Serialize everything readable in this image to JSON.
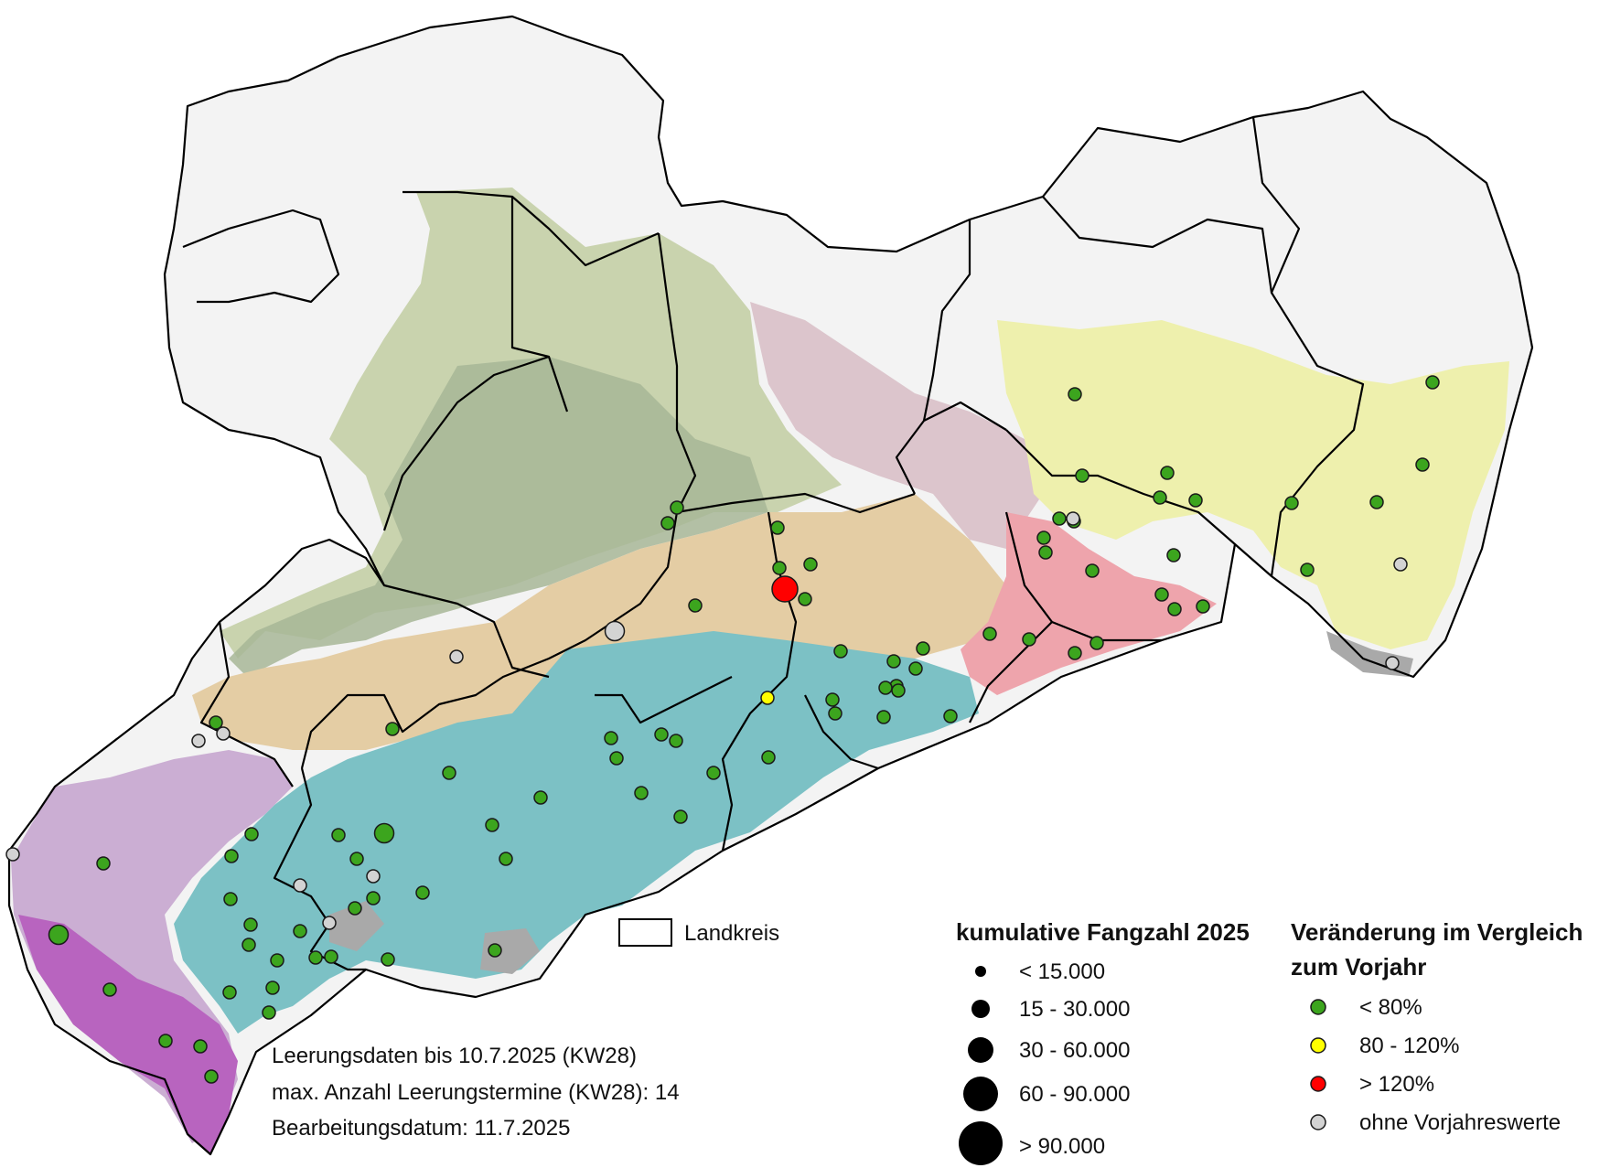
{
  "legend_landkreis": {
    "label": "Landkreis"
  },
  "legend_size": {
    "title": "kumulative Fangzahl 2025",
    "classes": [
      "< 15.000",
      "15 - 30.000",
      "30 - 60.000",
      "60 - 90.000",
      "> 90.000"
    ]
  },
  "legend_color": {
    "title_line1": "Veränderung im Vergleich",
    "title_line2": "zum Vorjahr",
    "classes": [
      {
        "label": "< 80%",
        "color": "#3ca51e"
      },
      {
        "label": "80 - 120%",
        "color": "#ffff00"
      },
      {
        "label": "> 120%",
        "color": "#ff0000"
      },
      {
        "label": "ohne Vorjahreswerte",
        "color": "#d3d3d3"
      }
    ]
  },
  "notes": {
    "line1": "Leerungsdaten bis 10.7.2025 (KW28)",
    "line2": "max. Anzahl Leerungstermine (KW28): 14",
    "line3": "Bearbeitungsdatum: 11.7.2025"
  },
  "colors": {
    "green_zone": "#c9d3ae",
    "dark_green_zone": "#a7b696",
    "mauve_zone": "#dcc5cc",
    "tan_zone": "#e4cda4",
    "teal_zone": "#7cc1c5",
    "yellow_zone": "#eef0ad",
    "pink_zone": "#eea4ac",
    "purple_zone": "#cbaed3",
    "magenta_zone": "#b864bf",
    "gray_zone": "#a9a9a9",
    "border": "#000000"
  }
}
